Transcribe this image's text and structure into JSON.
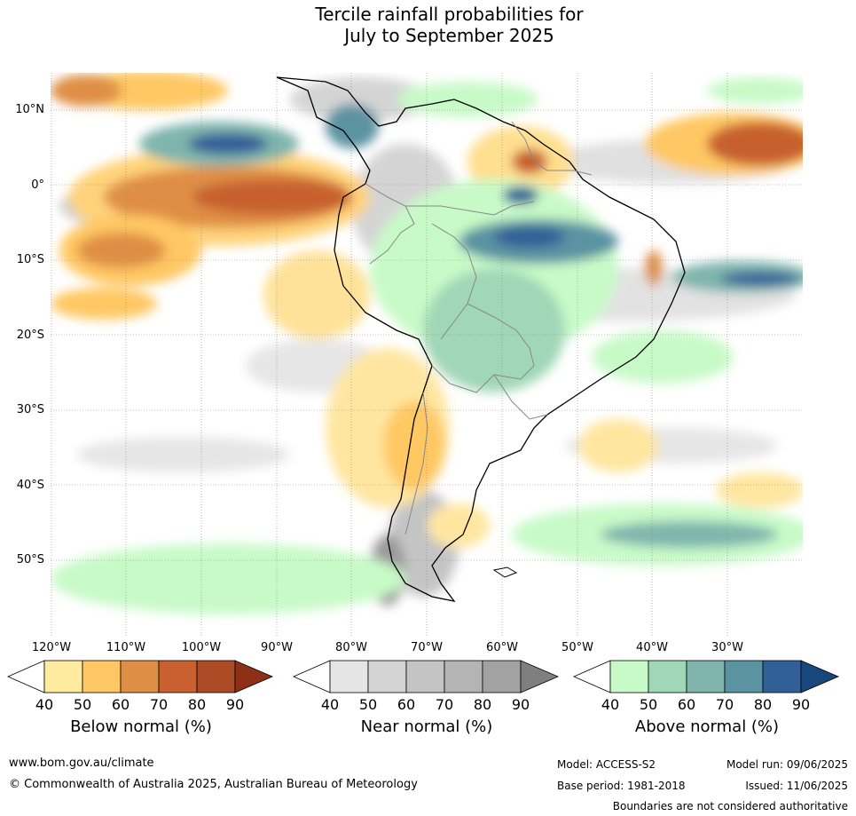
{
  "title_line1": "Tercile rainfall probabilities for",
  "title_line2": "July to September 2025",
  "lat_labels": [
    "10°N",
    "0°",
    "10°S",
    "20°S",
    "30°S",
    "40°S",
    "50°S"
  ],
  "lon_labels": [
    "120°W",
    "110°W",
    "100°W",
    "90°W",
    "80°W",
    "70°W",
    "60°W",
    "50°W",
    "40°W",
    "30°W"
  ],
  "colorbars": [
    {
      "title": "Below normal (%)",
      "ticks": [
        "40",
        "50",
        "60",
        "70",
        "80",
        "90"
      ],
      "colors": [
        "#ffffff",
        "#ffeba0",
        "#ffc864",
        "#df8f45",
        "#c8612f",
        "#ad4a26",
        "#8e3018"
      ]
    },
    {
      "title": "Near normal (%)",
      "ticks": [
        "40",
        "50",
        "60",
        "70",
        "80",
        "90"
      ],
      "colors": [
        "#ffffff",
        "#e5e5e5",
        "#d4d4d4",
        "#c4c4c4",
        "#b4b4b4",
        "#a2a2a2",
        "#7f7f7f"
      ]
    },
    {
      "title": "Above normal (%)",
      "ticks": [
        "40",
        "50",
        "60",
        "70",
        "80",
        "90"
      ],
      "colors": [
        "#ffffff",
        "#c8fac8",
        "#a0d7b7",
        "#7fb5ad",
        "#5b93a2",
        "#315f97",
        "#18477c"
      ]
    }
  ],
  "footer": {
    "website": "www.bom.gov.au/climate",
    "copyright": "© Commonwealth of Australia 2025, Australian Bureau of Meteorology",
    "model": "Model: ACCESS-S2",
    "model_run": "Model run: 09/06/2025",
    "base_period": "Base period: 1981-2018",
    "issued": "Issued: 11/06/2025",
    "disclaimer": "Boundaries are not considered authoritative"
  }
}
